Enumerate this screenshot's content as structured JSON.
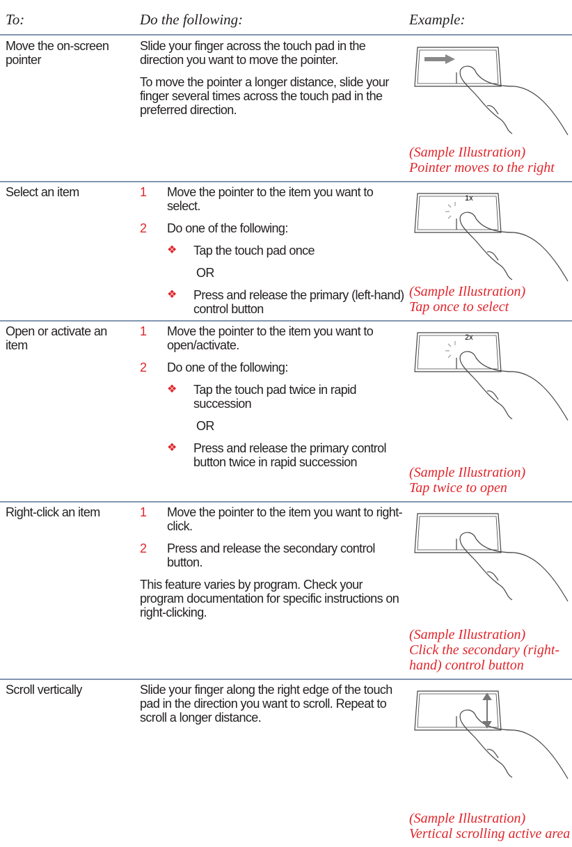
{
  "header": {
    "to": "To:",
    "action": "Do the following:",
    "example": "Example:"
  },
  "rows": [
    {
      "action": "Move the on-screen pointer",
      "content": [
        {
          "text": "Slide your finger across the touch pad in the direction you want to move the pointer."
        },
        {
          "text": "To move the pointer a longer distance, slide your finger several times across the touch pad in the preferred direction."
        }
      ],
      "caption": [
        "(Sample Illustration)",
        "Pointer moves to the right"
      ]
    },
    {
      "action": "Select an item",
      "content": [
        {
          "number": "1",
          "text": "Move the pointer to the item you want to select."
        },
        {
          "number": "2",
          "text": "Do one of the following:"
        },
        {
          "marker": "❖",
          "text": "Tap the touch pad once"
        },
        {
          "or": "OR"
        },
        {
          "marker": "❖",
          "text": "Press and release the primary (left-hand) control button"
        }
      ],
      "illustration_label": "1x",
      "caption": [
        "(Sample Illustration)",
        "Tap once to select"
      ]
    },
    {
      "action": "Open or activate an item",
      "content": [
        {
          "number": "1",
          "text": "Move the pointer to the item you want to open/activate."
        },
        {
          "number": "2",
          "text": "Do one of the following:"
        },
        {
          "marker": "❖",
          "text": "Tap the touch pad twice in rapid succession"
        },
        {
          "or": "OR"
        },
        {
          "marker": "❖",
          "text": "Press and release the primary control button twice in rapid succession"
        }
      ],
      "illustration_label": "2x",
      "caption": [
        "(Sample Illustration)",
        "Tap twice to open"
      ]
    },
    {
      "action": "Right-click an item",
      "content": [
        {
          "number": "1",
          "text": "Move the pointer to the item you want to right-click."
        },
        {
          "number": "2",
          "text": "Press and release the secondary control button."
        },
        {
          "text": "This feature varies by program. Check your program documentation for specific instructions on right-clicking."
        }
      ],
      "caption": [
        "(Sample Illustration)",
        "Click the secondary (right-hand) control button"
      ]
    },
    {
      "action": "Scroll vertically",
      "content": [
        {
          "text": "Slide your finger along the right edge of the touch pad in the direction you want to scroll. Repeat to scroll a longer distance."
        }
      ],
      "caption": [
        "(Sample Illustration)",
        "Vertical scrolling active area"
      ]
    }
  ]
}
